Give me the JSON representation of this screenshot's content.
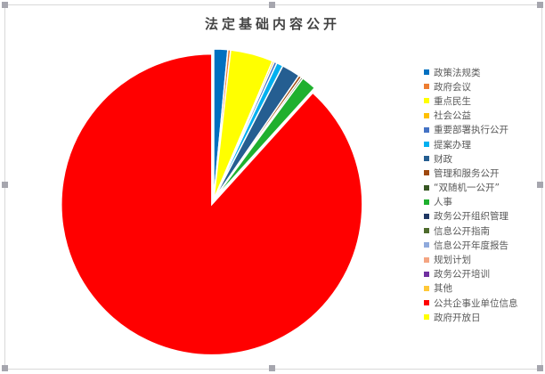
{
  "chart_data": {
    "type": "pie",
    "title": "法定基础内容公开",
    "legend_position": "right",
    "unit": "percent (estimated)",
    "categories": [
      "政策法规类",
      "政府会议",
      "重点民生",
      "社会公益",
      "重要部署执行公开",
      "提案办理",
      "财政",
      "管理和服务公开",
      "“双随机一公开”",
      "人事",
      "政务公开组织管理",
      "信息公开指南",
      "信息公开年度报告",
      "规划计划",
      "政务公开培训",
      "其他",
      "公共企事业单位信息",
      "政府开放日"
    ],
    "values": [
      1.5,
      0.3,
      4.6,
      0.2,
      0.3,
      0.7,
      2.0,
      0.3,
      0.2,
      1.6,
      0,
      0,
      0,
      0,
      0,
      0,
      88.3,
      0
    ],
    "colors": [
      "#0070C0",
      "#ED7D31",
      "#FFFF00",
      "#FFC000",
      "#4472C4",
      "#00B0F0",
      "#255E91",
      "#9E480E",
      "#375623",
      "#1FB02E",
      "#203864",
      "#4E6B2C",
      "#8FAADC",
      "#F4A582",
      "#7030A0",
      "#FFC838",
      "#FF0000",
      "#FFFF00"
    ],
    "exploded": [
      "公共企事业单位信息"
    ]
  }
}
